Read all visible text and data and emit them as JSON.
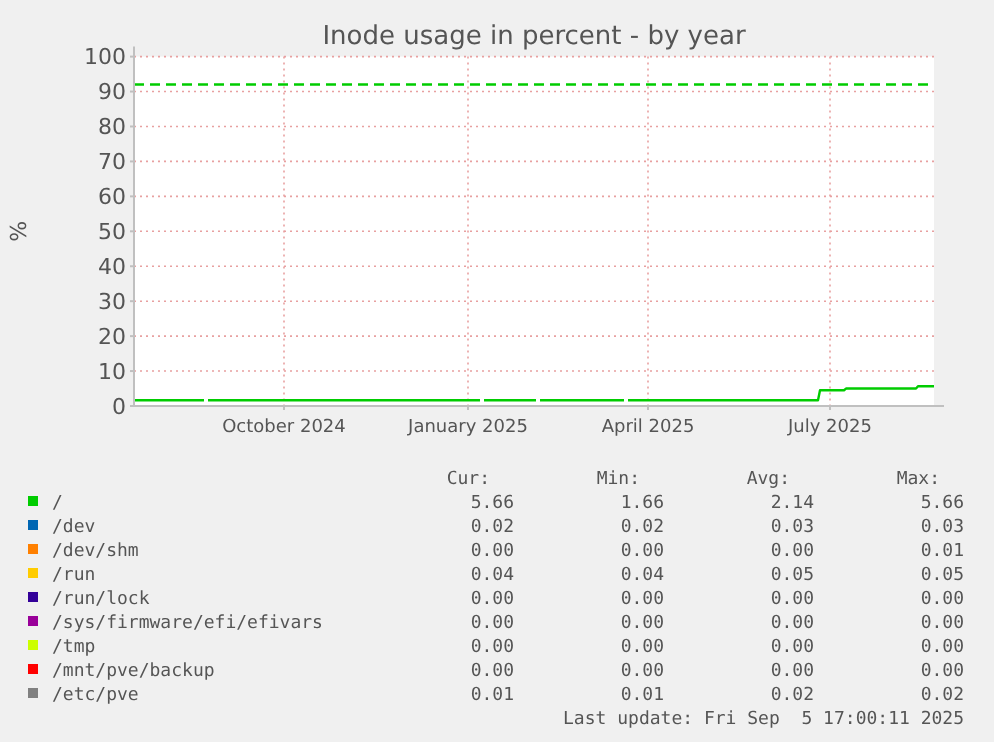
{
  "chart_data": {
    "type": "line",
    "title": "Inode usage in percent - by year",
    "ylabel": "%",
    "xlim": [
      "2024-08-01",
      "2025-09-05"
    ],
    "xticks": [
      {
        "value": "2024-10-15",
        "label": "October 2024"
      },
      {
        "value": "2025-01-15",
        "label": "January 2025"
      },
      {
        "value": "2025-04-15",
        "label": "April 2025"
      },
      {
        "value": "2025-07-15",
        "label": "July 2025"
      }
    ],
    "ylim": [
      0,
      100
    ],
    "yticks": [
      0,
      10,
      20,
      30,
      40,
      50,
      60,
      70,
      80,
      90,
      100
    ],
    "grid": true,
    "legend": "bottom",
    "line_style": "solid",
    "x": [
      "2024-08-01",
      "2024-09-05",
      "2024-09-06",
      "2024-09-07",
      "2025-01-21",
      "2025-01-22",
      "2025-01-23",
      "2025-02-18",
      "2025-02-19",
      "2025-02-20",
      "2025-04-03",
      "2025-04-04",
      "2025-04-05",
      "2025-07-09",
      "2025-07-10",
      "2025-07-22",
      "2025-07-23",
      "2025-08-27",
      "2025-08-28",
      "2025-09-05"
    ],
    "series": [
      {
        "name": "/",
        "color": "#00cc00",
        "values": [
          1.66,
          1.66,
          null,
          1.66,
          1.66,
          null,
          1.66,
          1.66,
          null,
          1.66,
          1.66,
          null,
          1.66,
          1.66,
          4.5,
          4.5,
          5.0,
          5.0,
          5.66,
          5.66
        ]
      },
      {
        "name": "/dev",
        "color": "#0066b3",
        "values": [
          null,
          null,
          null,
          null,
          null,
          null,
          null,
          null,
          null,
          null,
          null,
          null,
          null,
          null,
          null,
          null,
          null,
          null,
          null,
          null
        ]
      },
      {
        "name": "/dev/shm",
        "color": "#ff8000",
        "values": [
          null,
          null,
          null,
          null,
          null,
          null,
          null,
          null,
          null,
          null,
          null,
          null,
          null,
          null,
          null,
          null,
          null,
          null,
          null,
          null
        ]
      },
      {
        "name": "/run",
        "color": "#ffcc00",
        "values": [
          null,
          null,
          null,
          null,
          null,
          null,
          null,
          null,
          null,
          null,
          null,
          null,
          null,
          null,
          null,
          null,
          null,
          null,
          null,
          null
        ]
      },
      {
        "name": "/run/lock",
        "color": "#330099",
        "values": [
          null,
          null,
          null,
          null,
          null,
          null,
          null,
          null,
          null,
          null,
          null,
          null,
          null,
          null,
          null,
          null,
          null,
          null,
          null,
          null
        ]
      },
      {
        "name": "/sys/firmware/efi/efivars",
        "color": "#990099",
        "values": [
          null,
          null,
          null,
          null,
          null,
          null,
          null,
          null,
          null,
          null,
          null,
          null,
          null,
          null,
          null,
          null,
          null,
          null,
          null,
          null
        ]
      },
      {
        "name": "/tmp",
        "color": "#ccff00",
        "values": [
          null,
          null,
          null,
          null,
          null,
          null,
          null,
          null,
          null,
          null,
          null,
          null,
          null,
          null,
          null,
          null,
          null,
          null,
          null,
          null
        ]
      },
      {
        "name": "/mnt/pve/backup",
        "color": "#ff0000",
        "values": [
          null,
          null,
          null,
          null,
          null,
          null,
          null,
          null,
          null,
          null,
          null,
          null,
          null,
          null,
          null,
          null,
          null,
          null,
          null,
          null
        ]
      },
      {
        "name": "/etc/pve",
        "color": "#808080",
        "values": [
          null,
          null,
          null,
          null,
          null,
          null,
          null,
          null,
          null,
          null,
          null,
          null,
          null,
          null,
          null,
          null,
          null,
          null,
          null,
          null
        ]
      }
    ],
    "ref_lines": [
      {
        "axis": "y",
        "value": 92,
        "color": "#00cc00",
        "line_style": "dashed"
      }
    ],
    "annotations": [
      "Cur:",
      "Min:",
      "Avg:",
      "Max:",
      "5.66",
      "1.66",
      "2.14",
      "5.66",
      "0.02",
      "0.02",
      "0.03",
      "0.03",
      "0.00",
      "0.00",
      "0.00",
      "0.01",
      "0.04",
      "0.04",
      "0.05",
      "0.05",
      "0.00",
      "0.00",
      "0.00",
      "0.00",
      "0.00",
      "0.00",
      "0.00",
      "0.00",
      "0.00",
      "0.00",
      "0.00",
      "0.00",
      "0.00",
      "0.00",
      "0.00",
      "0.00",
      "0.01",
      "0.01",
      "0.02",
      "0.02",
      "Last update: Fri Sep  5 17:00:11 2025"
    ]
  }
}
